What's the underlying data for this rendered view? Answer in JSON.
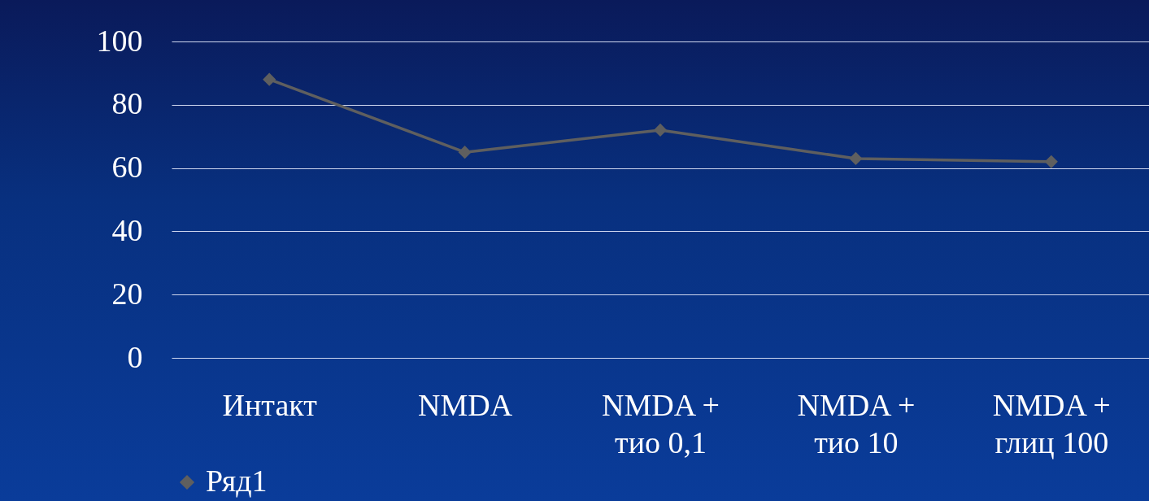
{
  "chart_data": {
    "type": "line",
    "categories": [
      "Интакт",
      "NMDA",
      "NMDA +\nтио 0,1",
      "NMDA +\nтио 10",
      "NMDA +\nглиц 100"
    ],
    "series": [
      {
        "name": "Ряд1",
        "color": "#5f5f5f",
        "values": [
          88,
          65,
          72,
          63,
          62
        ]
      }
    ],
    "ylim": [
      0,
      100
    ],
    "yticks": [
      0,
      20,
      40,
      60,
      80,
      100
    ],
    "grid": "y",
    "legend": "bottom",
    "marker": "diamond",
    "line_style": "solid"
  }
}
